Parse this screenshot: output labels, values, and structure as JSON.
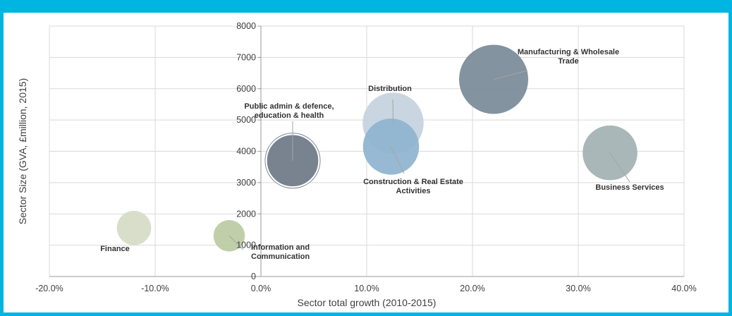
{
  "chart_data": {
    "type": "bubble",
    "xlabel": "Sector total growth (2010-2015)",
    "ylabel": "Sector Size (GVA, £million, 2015)",
    "xlim": [
      -0.2,
      0.4
    ],
    "ylim": [
      0,
      8000
    ],
    "x_ticks": [
      "-20.0%",
      "-10.0%",
      "0.0%",
      "10.0%",
      "20.0%",
      "30.0%",
      "40.0%"
    ],
    "y_ticks": [
      "0",
      "1000",
      "2000",
      "3000",
      "4000",
      "5000",
      "6000",
      "7000",
      "8000"
    ],
    "grid": true,
    "points": [
      {
        "label": [
          "Finance"
        ],
        "x": -0.12,
        "y": 1550,
        "size": 1550,
        "color": "#d6dcc6"
      },
      {
        "label": [
          "Information and",
          "Communication"
        ],
        "x": -0.03,
        "y": 1300,
        "size": 1300,
        "color": "#bccaa4"
      },
      {
        "label": [
          "Public admin & defence,",
          "education & health"
        ],
        "x": 0.03,
        "y": 3700,
        "size": 3700,
        "color": "#6e7a86"
      },
      {
        "label": [
          "Distribution"
        ],
        "x": 0.125,
        "y": 4900,
        "size": 4900,
        "color": "#c5d3df"
      },
      {
        "label": [
          "Construction & Real Estate",
          "Activities"
        ],
        "x": 0.123,
        "y": 4150,
        "size": 4150,
        "color": "#8fb4d0"
      },
      {
        "label": [
          "Manufacturing & Wholesale",
          "Trade"
        ],
        "x": 0.22,
        "y": 6300,
        "size": 6300,
        "color": "#7a8b99"
      },
      {
        "label": [
          "Business Services"
        ],
        "x": 0.33,
        "y": 3950,
        "size": 3950,
        "color": "#a2b2b3"
      }
    ]
  }
}
